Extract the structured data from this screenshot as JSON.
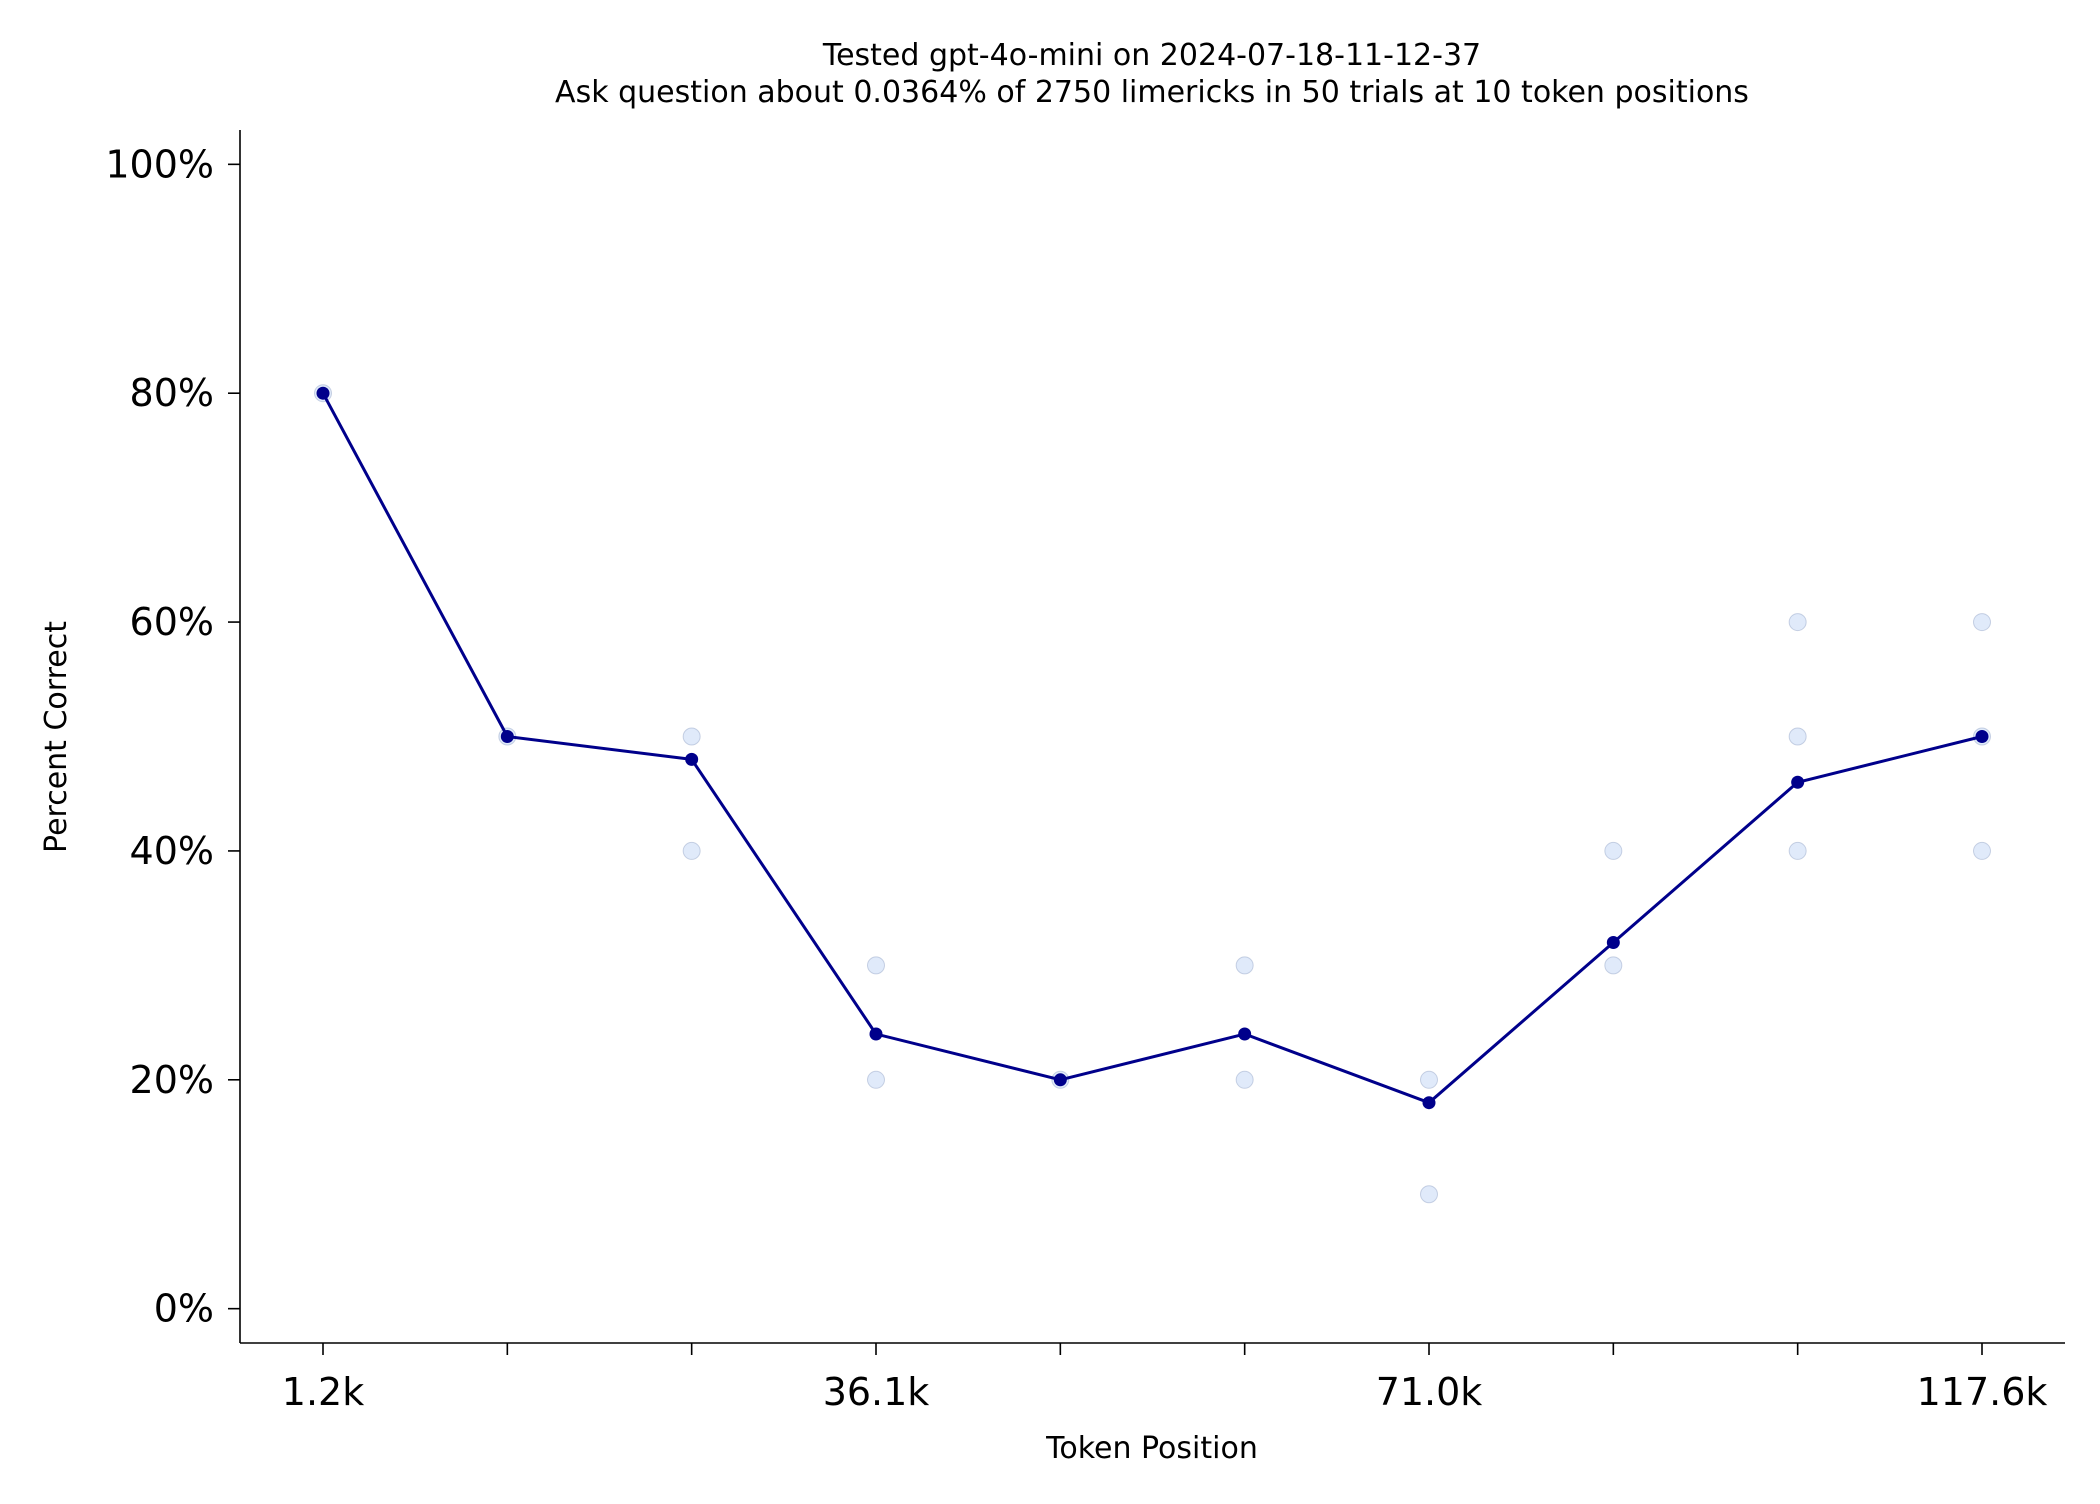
{
  "chart_data": {
    "type": "line",
    "title": "Tested gpt-4o-mini on 2024-07-18-11-12-37",
    "subtitle": "Ask question about 0.0364% of 2750 limericks in 50 trials at 10 token positions",
    "xlabel": "Token Position",
    "ylabel": "Percent Correct",
    "x_tick_labels": [
      "1.2k",
      "",
      "",
      "36.1k",
      "",
      "",
      "71.0k",
      "",
      "",
      "117.6k"
    ],
    "y_ticks": [
      0,
      20,
      40,
      60,
      80,
      100
    ],
    "y_tick_labels": [
      "0%",
      "20%",
      "40%",
      "60%",
      "80%",
      "100%"
    ],
    "ylim": [
      -3,
      103
    ],
    "grid": false,
    "series": [
      {
        "color": "#00008b",
        "values": [
          80,
          50,
          48,
          24,
          20,
          24,
          18,
          32,
          46,
          50
        ]
      }
    ],
    "trial_points": [
      {
        "position": 0,
        "values": [
          80
        ]
      },
      {
        "position": 1,
        "values": [
          50
        ]
      },
      {
        "position": 2,
        "values": [
          50,
          40
        ]
      },
      {
        "position": 3,
        "values": [
          30,
          20
        ]
      },
      {
        "position": 4,
        "values": [
          20
        ]
      },
      {
        "position": 5,
        "values": [
          30,
          20
        ]
      },
      {
        "position": 6,
        "values": [
          20,
          10
        ]
      },
      {
        "position": 7,
        "values": [
          40,
          30
        ]
      },
      {
        "position": 8,
        "values": [
          60,
          50,
          40
        ]
      },
      {
        "position": 9,
        "values": [
          60,
          50,
          40
        ]
      }
    ],
    "colors": {
      "line": "#00008b",
      "trial_point": "#c6d9f5"
    }
  }
}
